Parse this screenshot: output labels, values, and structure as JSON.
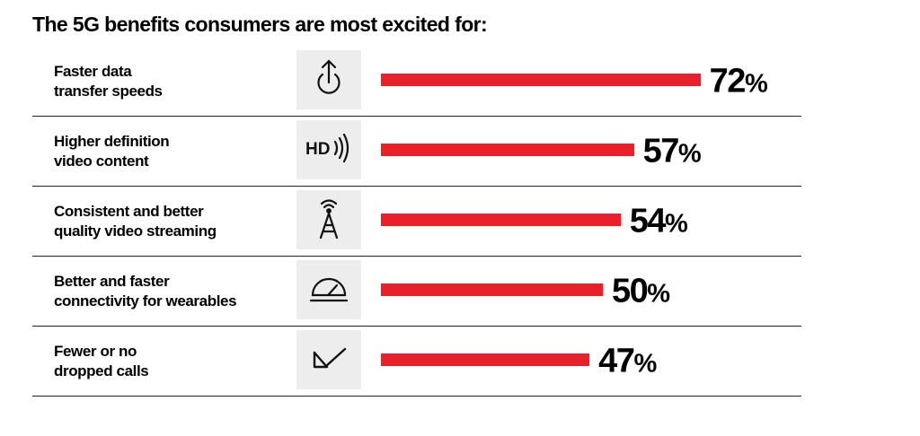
{
  "chart_data": {
    "type": "bar",
    "orientation": "horizontal",
    "title": "The 5G benefits consumers are most excited for:",
    "categories": [
      "Faster data\ntransfer speeds",
      "Higher definition\nvideo content",
      "Consistent and better\nquality video streaming",
      "Better and faster\nconnectivity for wearables",
      "Fewer or no\ndropped calls"
    ],
    "values": [
      72,
      57,
      54,
      50,
      47
    ],
    "value_labels": [
      "72",
      "57",
      "54",
      "50",
      "47"
    ],
    "unit": "%",
    "icons": [
      "upload-power-icon",
      "hd-streaming-icon",
      "cell-tower-icon",
      "speedometer-icon",
      "checkmark-icon"
    ],
    "hd_icon_text": "HD",
    "bar_color": "#e8202a",
    "icon_background": "#ededed",
    "grid": false
  }
}
